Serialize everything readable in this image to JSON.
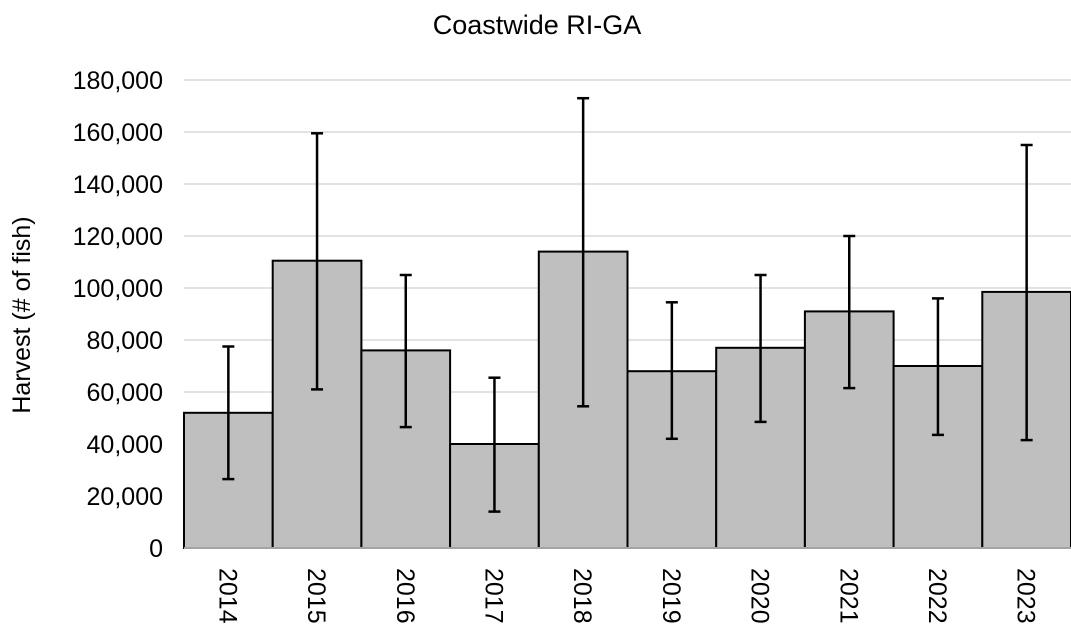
{
  "chart_data": {
    "type": "bar",
    "title": "Coastwide RI-GA",
    "xlabel": "",
    "ylabel": "Harvest (# of fish)",
    "categories": [
      "2014",
      "2015",
      "2016",
      "2017",
      "2018",
      "2019",
      "2020",
      "2021",
      "2022",
      "2023"
    ],
    "values": [
      52000,
      110500,
      76000,
      40000,
      114000,
      68000,
      77000,
      91000,
      70000,
      98500
    ],
    "error_bars": {
      "lower": [
        26500,
        61000,
        46500,
        14000,
        54500,
        42000,
        48500,
        61500,
        43500,
        41500
      ],
      "upper": [
        77500,
        159500,
        105000,
        65500,
        173000,
        94500,
        105000,
        120000,
        96000,
        155000
      ]
    },
    "ylim": [
      0,
      180000
    ],
    "yticks": [
      0,
      20000,
      40000,
      60000,
      80000,
      100000,
      120000,
      140000,
      160000,
      180000
    ],
    "ytick_labels": [
      "0",
      "20,000",
      "40,000",
      "60,000",
      "80,000",
      "100,000",
      "120,000",
      "140,000",
      "160,000",
      "180,000"
    ],
    "grid": true,
    "legend": "none",
    "colors": {
      "bar_fill": "#bfbfbf",
      "bar_stroke": "#000000",
      "grid": "#d9d9d9",
      "error_bar": "#000000"
    }
  }
}
